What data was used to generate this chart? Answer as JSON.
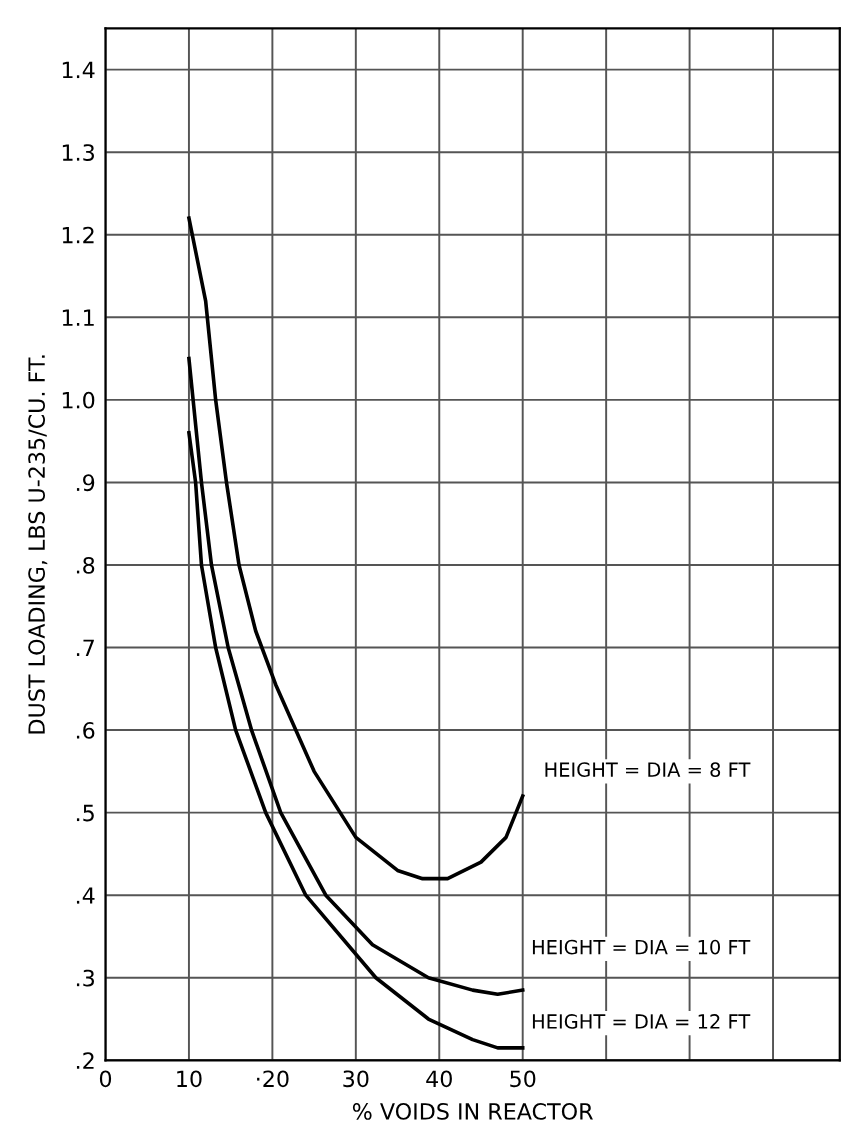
{
  "chart_data": {
    "type": "line",
    "xlabel": "% VOIDS IN REACTOR",
    "ylabel": "DUST LOADING, LBS U-235/CU. FT.",
    "xlim": [
      0,
      88
    ],
    "ylim": [
      0.2,
      1.45
    ],
    "xticks": [
      0,
      10,
      {
        "value": 20,
        "label": "·20"
      },
      30,
      40,
      50,
      {
        "value": 60,
        "label": null
      },
      {
        "value": 70,
        "label": null
      },
      {
        "value": 80,
        "label": null
      }
    ],
    "yticks": [
      {
        "value": 0.2,
        "label": ".2"
      },
      {
        "value": 0.3,
        "label": ".3"
      },
      {
        "value": 0.4,
        "label": ".4"
      },
      {
        "value": 0.5,
        "label": ".5"
      },
      {
        "value": 0.6,
        "label": ".6"
      },
      {
        "value": 0.7,
        "label": ".7"
      },
      {
        "value": 0.8,
        "label": ".8"
      },
      {
        "value": 0.9,
        "label": ".9"
      },
      {
        "value": 1.0,
        "label": "1.0"
      },
      {
        "value": 1.1,
        "label": "1.1"
      },
      {
        "value": 1.2,
        "label": "1.2"
      },
      {
        "value": 1.3,
        "label": "1.3"
      },
      {
        "value": 1.4,
        "label": "1.4"
      }
    ],
    "grid": true,
    "line_style": "solid",
    "marker": "none",
    "series": [
      {
        "name": "HEIGHT = DIA = 8 FT",
        "color": "#000000",
        "x": [
          10,
          12,
          13.2,
          14.5,
          16,
          18,
          20.4,
          25,
          30,
          35,
          38,
          41,
          45,
          48,
          50
        ],
        "values": [
          1.22,
          1.12,
          1.0,
          0.9,
          0.8,
          0.72,
          0.655,
          0.55,
          0.47,
          0.43,
          0.42,
          0.42,
          0.44,
          0.47,
          0.52
        ]
      },
      {
        "name": "HEIGHT = DIA = 10 FT",
        "color": "#000000",
        "x": [
          10,
          11.5,
          12.7,
          14.7,
          17.5,
          21,
          26.4,
          32,
          38.7,
          44,
          47,
          50
        ],
        "values": [
          1.05,
          0.9,
          0.8,
          0.7,
          0.6,
          0.5,
          0.4,
          0.34,
          0.3,
          0.285,
          0.28,
          0.285
        ]
      },
      {
        "name": "HEIGHT = DIA = 12 FT",
        "color": "#000000",
        "x": [
          10,
          10.8,
          11.5,
          13.2,
          15.6,
          19.2,
          24,
          32.4,
          38.7,
          44,
          47,
          50
        ],
        "values": [
          0.96,
          0.9,
          0.8,
          0.7,
          0.6,
          0.5,
          0.4,
          0.3,
          0.25,
          0.225,
          0.215,
          0.215
        ]
      }
    ]
  }
}
